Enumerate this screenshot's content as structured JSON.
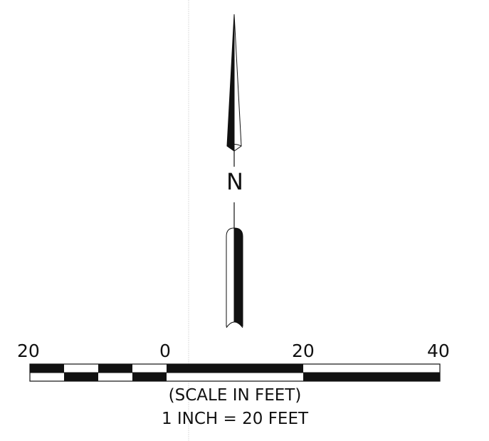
{
  "north_arrow": {
    "letter": "N",
    "icon": "north-arrow-icon"
  },
  "scale_bar": {
    "ticks": [
      "20",
      "0",
      "20",
      "40"
    ],
    "caption_line1": "(SCALE IN FEET)",
    "caption_line2": "1 INCH = 20 FEET",
    "colors": {
      "dark": "#111111",
      "light": "#ffffff"
    }
  }
}
